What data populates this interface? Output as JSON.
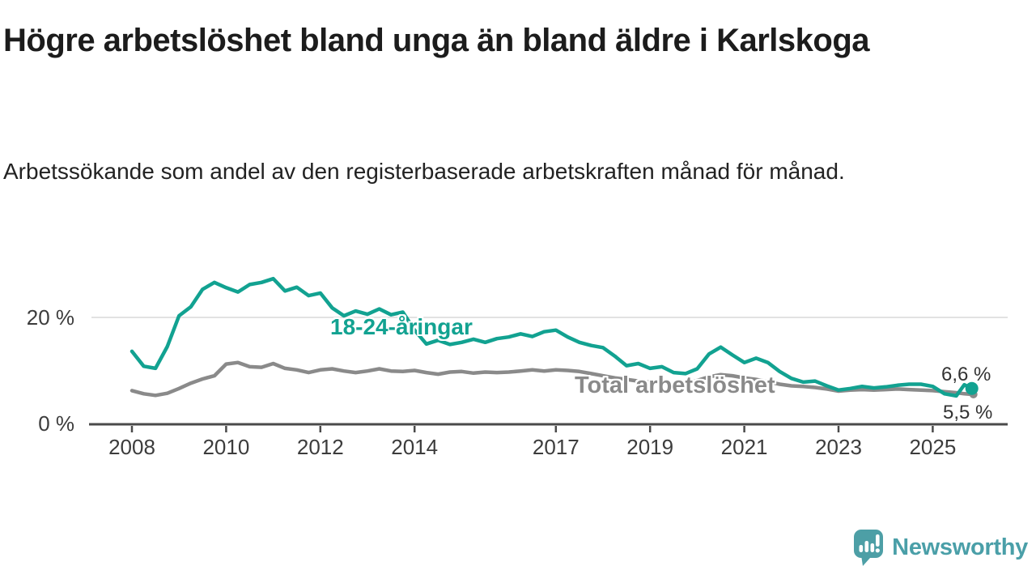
{
  "header": {
    "title": "Högre arbetslöshet bland unga än bland äldre i Karlskoga",
    "subtitle": "Arbetssökande som andel av den registerbaserade arbetskraften månad för månad."
  },
  "chart_data": {
    "type": "line",
    "unit": "%",
    "title": "Högre arbetslöshet bland unga än bland äldre i Karlskoga",
    "xlabel": "",
    "ylabel": "",
    "xlim": [
      2007.1,
      2026.6
    ],
    "ylim": [
      0,
      30
    ],
    "grid": "single horizontal gridline at 20 %",
    "legend": "inline labels next to lines",
    "x": [
      2008,
      2008.25,
      2008.5,
      2008.75,
      2009,
      2009.25,
      2009.5,
      2009.75,
      2010,
      2010.25,
      2010.5,
      2010.75,
      2011,
      2011.25,
      2011.5,
      2011.75,
      2012,
      2012.25,
      2012.5,
      2012.75,
      2013,
      2013.25,
      2013.5,
      2013.75,
      2014,
      2014.25,
      2014.5,
      2014.75,
      2015,
      2015.25,
      2015.5,
      2015.75,
      2016,
      2016.25,
      2016.5,
      2016.75,
      2017,
      2017.25,
      2017.5,
      2017.75,
      2018,
      2018.25,
      2018.5,
      2018.75,
      2019,
      2019.25,
      2019.5,
      2019.75,
      2020,
      2020.25,
      2020.5,
      2020.75,
      2021,
      2021.25,
      2021.5,
      2021.75,
      2022,
      2022.25,
      2022.5,
      2022.75,
      2023,
      2023.25,
      2023.5,
      2023.75,
      2024,
      2024.25,
      2024.5,
      2024.75,
      2025,
      2025.25,
      2025.5,
      2025.67,
      2025.83
    ],
    "series": [
      {
        "name": "18-24-åringar",
        "color": "#12a291",
        "end_label": "6,6 %",
        "end_value": 6.6,
        "values": [
          13.6,
          10.8,
          10.4,
          14.5,
          20.3,
          22.0,
          25.3,
          26.6,
          25.6,
          24.8,
          26.2,
          26.6,
          27.3,
          25.0,
          25.7,
          24.1,
          24.6,
          21.8,
          20.3,
          21.2,
          20.6,
          21.6,
          20.5,
          21.0,
          17.6,
          15.0,
          15.7,
          14.9,
          15.3,
          15.9,
          15.3,
          16.0,
          16.3,
          16.9,
          16.4,
          17.3,
          17.6,
          16.3,
          15.3,
          14.7,
          14.3,
          12.7,
          10.9,
          11.3,
          10.4,
          10.7,
          9.6,
          9.4,
          10.3,
          13.1,
          14.4,
          12.9,
          11.5,
          12.3,
          11.5,
          9.8,
          8.5,
          7.8,
          8.0,
          7.1,
          6.3,
          6.6,
          7.0,
          6.7,
          6.9,
          7.2,
          7.4,
          7.4,
          7.0,
          5.6,
          5.2,
          7.3,
          6.6
        ]
      },
      {
        "name": "Total arbetslöshet",
        "color": "#8a8a8a",
        "end_label": "5,5 %",
        "end_value": 5.5,
        "values": [
          6.2,
          5.6,
          5.3,
          5.7,
          6.6,
          7.6,
          8.4,
          9.0,
          11.2,
          11.5,
          10.7,
          10.6,
          11.3,
          10.4,
          10.1,
          9.6,
          10.1,
          10.3,
          9.9,
          9.6,
          9.9,
          10.3,
          9.9,
          9.8,
          10.0,
          9.6,
          9.3,
          9.7,
          9.8,
          9.5,
          9.7,
          9.6,
          9.7,
          9.9,
          10.1,
          9.9,
          10.1,
          10.0,
          9.8,
          9.4,
          9.0,
          8.6,
          8.3,
          8.0,
          7.8,
          7.7,
          7.6,
          7.7,
          8.1,
          8.8,
          9.2,
          9.0,
          8.6,
          8.3,
          7.9,
          7.4,
          7.1,
          7.0,
          6.8,
          6.5,
          6.1,
          6.3,
          6.4,
          6.3,
          6.4,
          6.5,
          6.4,
          6.3,
          6.2,
          6.0,
          5.8,
          5.6,
          5.5
        ]
      }
    ],
    "x_ticks": [
      {
        "year": 2008,
        "label": "2008"
      },
      {
        "year": 2010,
        "label": "2010"
      },
      {
        "year": 2012,
        "label": "2012"
      },
      {
        "year": 2014,
        "label": "2014"
      },
      {
        "year": 2017,
        "label": "2017"
      },
      {
        "year": 2019,
        "label": "2019"
      },
      {
        "year": 2021,
        "label": "2021"
      },
      {
        "year": 2023,
        "label": "2023"
      },
      {
        "year": 2025,
        "label": "2025"
      }
    ],
    "y_ticks": [
      {
        "value": 0,
        "label": "0 %"
      },
      {
        "value": 20,
        "label": "20 %"
      }
    ],
    "colors": {
      "axis": "#4a4a4a",
      "gridline": "#d9d9d9",
      "tick_text": "#3c3c3c"
    }
  },
  "footer": {
    "brand": "Newsworthy",
    "brand_color": "#4a9fa8"
  }
}
